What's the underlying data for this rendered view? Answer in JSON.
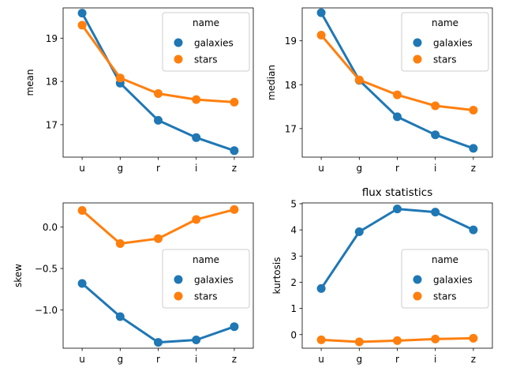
{
  "figure": {
    "colors": {
      "galaxies": "#1f77b4",
      "stars": "#ff7f0e"
    }
  },
  "chart_data": [
    {
      "type": "line",
      "categories": [
        "u",
        "g",
        "r",
        "i",
        "z"
      ],
      "ylabel": "mean",
      "title": "",
      "ylim": [
        16.25,
        19.7
      ],
      "yticks": [
        17,
        18,
        19
      ],
      "yticklabels": [
        "17",
        "18",
        "19"
      ],
      "legend": {
        "title": "name",
        "placement": "upper right"
      },
      "series": [
        {
          "name": "galaxies",
          "values": [
            19.58,
            17.96,
            17.1,
            16.7,
            16.4
          ]
        },
        {
          "name": "stars",
          "values": [
            19.3,
            18.08,
            17.72,
            17.58,
            17.52
          ]
        }
      ]
    },
    {
      "type": "line",
      "categories": [
        "u",
        "g",
        "r",
        "i",
        "z"
      ],
      "ylabel": "median",
      "title": "",
      "ylim": [
        16.35,
        19.75
      ],
      "yticks": [
        17,
        18,
        19
      ],
      "yticklabels": [
        "17",
        "18",
        "19"
      ],
      "legend": {
        "title": "name",
        "placement": "upper right"
      },
      "series": [
        {
          "name": "galaxies",
          "values": [
            19.64,
            18.1,
            17.27,
            16.86,
            16.55
          ]
        },
        {
          "name": "stars",
          "values": [
            19.13,
            18.11,
            17.77,
            17.52,
            17.42
          ]
        }
      ]
    },
    {
      "type": "line",
      "categories": [
        "u",
        "g",
        "r",
        "i",
        "z"
      ],
      "ylabel": "skew",
      "title": "",
      "ylim": [
        -1.46,
        0.29
      ],
      "yticks": [
        -1.0,
        -0.5,
        0.0
      ],
      "yticklabels": [
        "−1.0",
        "−0.5",
        "0.0"
      ],
      "legend": {
        "title": "name",
        "placement": "center right"
      },
      "series": [
        {
          "name": "galaxies",
          "values": [
            -0.68,
            -1.08,
            -1.39,
            -1.36,
            -1.2
          ]
        },
        {
          "name": "stars",
          "values": [
            0.2,
            -0.2,
            -0.14,
            0.09,
            0.21
          ]
        }
      ]
    },
    {
      "type": "line",
      "categories": [
        "u",
        "g",
        "r",
        "i",
        "z"
      ],
      "ylabel": "kurtosis",
      "title": "flux statistics",
      "ylim": [
        -0.52,
        5.03
      ],
      "yticks": [
        0,
        1,
        2,
        3,
        4,
        5
      ],
      "yticklabels": [
        "0",
        "1",
        "2",
        "3",
        "4",
        "5"
      ],
      "legend": {
        "title": "name",
        "placement": "center right"
      },
      "series": [
        {
          "name": "galaxies",
          "values": [
            1.76,
            3.93,
            4.8,
            4.68,
            4.0
          ]
        },
        {
          "name": "stars",
          "values": [
            -0.2,
            -0.28,
            -0.23,
            -0.17,
            -0.14
          ]
        }
      ]
    }
  ]
}
